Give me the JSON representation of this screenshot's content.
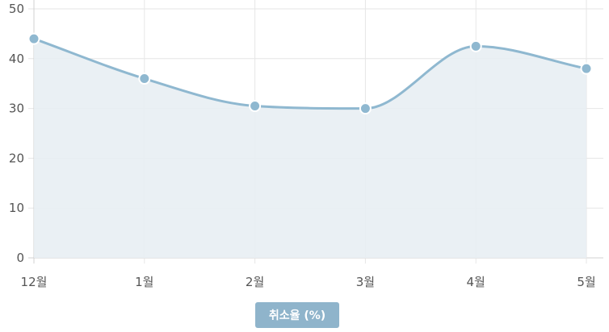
{
  "chart_data": {
    "type": "area",
    "categories": [
      "12월",
      "1월",
      "2월",
      "3월",
      "4월",
      "5월"
    ],
    "series": [
      {
        "name": "취소율 (%)",
        "values": [
          44,
          36,
          30.5,
          30,
          42.5,
          38
        ]
      }
    ],
    "ylim": [
      0,
      50
    ],
    "yticks": [
      0,
      10,
      20,
      30,
      40,
      50
    ],
    "grid": true,
    "legend": "bottom-center",
    "colors": {
      "line": "#8fb8d0",
      "fill": "#e8eef3",
      "point": "#8fb8d0",
      "point_border": "#ffffff",
      "grid": "#e6e6e6",
      "axis": "#d0d0d0",
      "legend_badge": "#8fb4cb"
    }
  }
}
